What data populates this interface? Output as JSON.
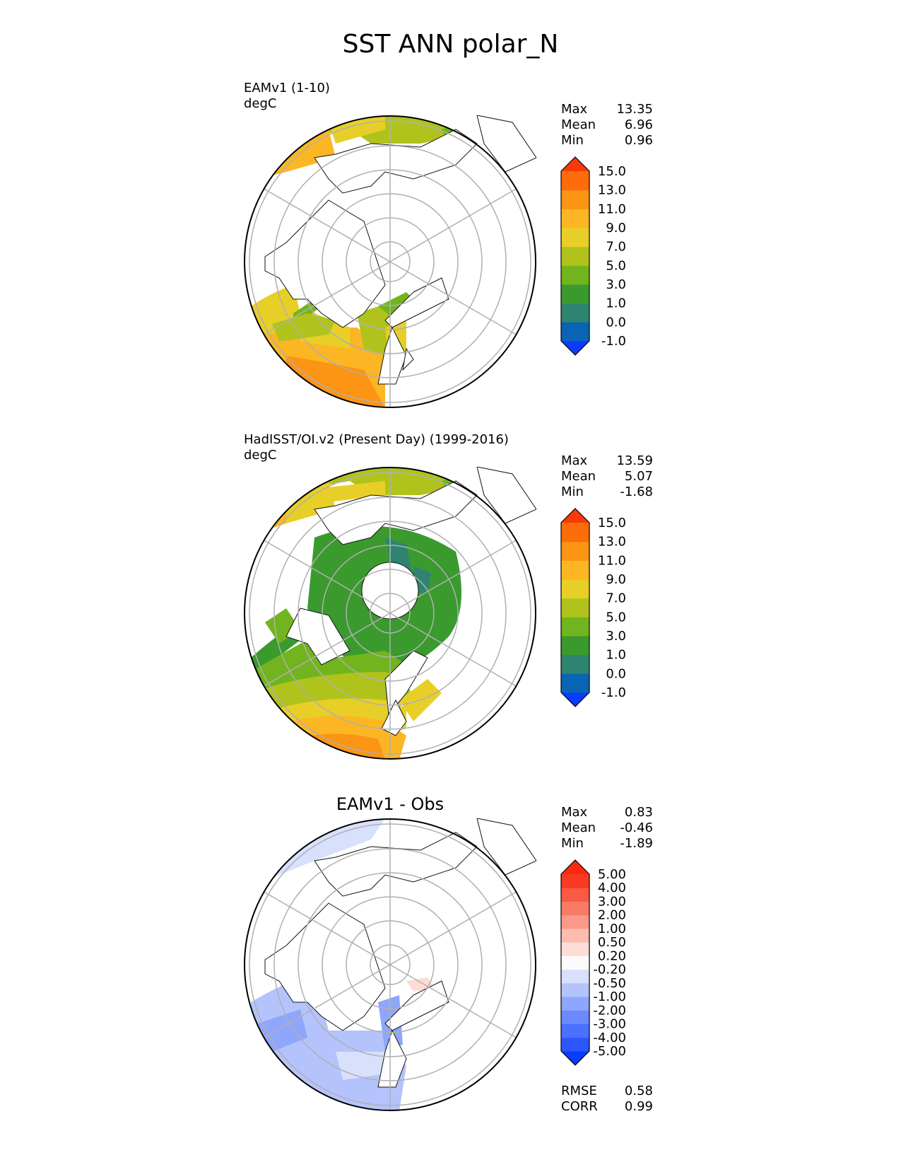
{
  "figure_title": "SST ANN polar_N",
  "panels": [
    {
      "name": "EAMv1 (1-10)",
      "units": "degC",
      "stats": {
        "max_label": "Max",
        "max": "13.35",
        "mean_label": "Mean",
        "mean": "6.96",
        "min_label": "Min",
        "min": "0.96"
      }
    },
    {
      "name": "HadISST/OI.v2 (Present Day) (1999-2016)",
      "units": "degC",
      "stats": {
        "max_label": "Max",
        "max": "13.59",
        "mean_label": "Mean",
        "mean": "5.07",
        "min_label": "Min",
        "min": "-1.68"
      }
    },
    {
      "title": "EAMv1 - Obs",
      "stats": {
        "max_label": "Max",
        "max": "0.83",
        "mean_label": "Mean",
        "mean": "-0.46",
        "min_label": "Min",
        "min": "-1.89"
      },
      "metrics": {
        "rmse_label": "RMSE",
        "rmse": "0.58",
        "corr_label": "CORR",
        "corr": "0.99"
      }
    }
  ],
  "chart_data": [
    {
      "type": "heatmap",
      "title": "EAMv1 (1-10)",
      "units": "degC",
      "projection": "north polar stereographic",
      "colorbar": {
        "ticks": [
          "-1.0",
          "0.0",
          "1.0",
          "3.0",
          "5.0",
          "7.0",
          "9.0",
          "11.0",
          "13.0",
          "15.0"
        ],
        "colors": [
          "#0a3cff",
          "#0a64b4",
          "#2e8470",
          "#3a9a2e",
          "#72b41e",
          "#b0c31c",
          "#e8cf28",
          "#fcb623",
          "#fc9414",
          "#fc6c0a",
          "#f93a08"
        ],
        "extend": "both"
      }
    },
    {
      "type": "heatmap",
      "title": "HadISST/OI.v2 (Present Day) (1999-2016)",
      "units": "degC",
      "projection": "north polar stereographic",
      "colorbar": {
        "ticks": [
          "-1.0",
          "0.0",
          "1.0",
          "3.0",
          "5.0",
          "7.0",
          "9.0",
          "11.0",
          "13.0",
          "15.0"
        ],
        "colors": [
          "#0a3cff",
          "#0a64b4",
          "#2e8470",
          "#3a9a2e",
          "#72b41e",
          "#b0c31c",
          "#e8cf28",
          "#fcb623",
          "#fc9414",
          "#fc6c0a",
          "#f93a08"
        ],
        "extend": "both"
      }
    },
    {
      "type": "heatmap",
      "title": "EAMv1 - Obs",
      "projection": "north polar stereographic",
      "colorbar": {
        "ticks": [
          "-5.00",
          "-4.00",
          "-3.00",
          "-2.00",
          "-1.00",
          "-0.50",
          "-0.20",
          "0.20",
          "0.50",
          "1.00",
          "2.00",
          "3.00",
          "4.00",
          "5.00"
        ],
        "colors": [
          "#0a3cff",
          "#2c57ff",
          "#4c70fe",
          "#6c8afd",
          "#8ea6fb",
          "#b4c3fb",
          "#d8e0fc",
          "#fbfbfb",
          "#fddcd6",
          "#fcbcb0",
          "#fb9a8a",
          "#fa7a66",
          "#f95a44",
          "#f93a22",
          "#f92a10"
        ],
        "extend": "both"
      }
    }
  ]
}
